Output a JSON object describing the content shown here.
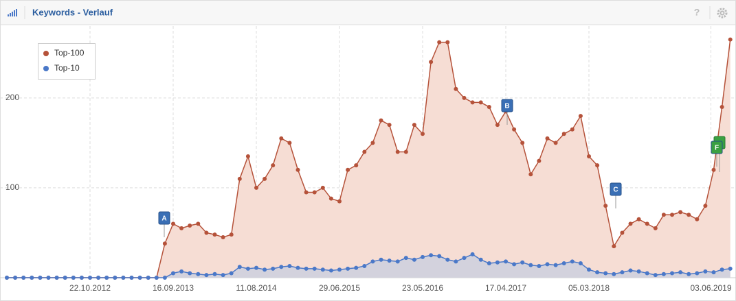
{
  "header": {
    "title": "Keywords - Verlauf",
    "help": "?"
  },
  "chart_data": {
    "type": "line",
    "categories": [
      null,
      null,
      null,
      null,
      null,
      null,
      null,
      null,
      null,
      null,
      "22.10.2012",
      null,
      null,
      null,
      null,
      null,
      null,
      null,
      null,
      null,
      "16.09.2013",
      null,
      null,
      null,
      null,
      null,
      null,
      null,
      null,
      null,
      "11.08.2014",
      null,
      null,
      null,
      null,
      null,
      null,
      null,
      null,
      null,
      "29.06.2015",
      null,
      null,
      null,
      null,
      null,
      null,
      null,
      null,
      null,
      "23.05.2016",
      null,
      null,
      null,
      null,
      null,
      null,
      null,
      null,
      null,
      "17.04.2017",
      null,
      null,
      null,
      null,
      null,
      null,
      null,
      null,
      null,
      "05.03.2018",
      null,
      null,
      null,
      null,
      null,
      null,
      null,
      null,
      null,
      null,
      null,
      null,
      null,
      null,
      "03.06.2019",
      null,
      null
    ],
    "series": [
      {
        "name": "Top-100",
        "color": "#b5523a",
        "fill": "#f6ddd4",
        "values": [
          0,
          0,
          0,
          0,
          0,
          0,
          0,
          0,
          0,
          0,
          0,
          0,
          0,
          0,
          0,
          0,
          0,
          0,
          0,
          38,
          60,
          55,
          58,
          60,
          50,
          48,
          45,
          48,
          110,
          135,
          100,
          110,
          125,
          155,
          150,
          120,
          95,
          95,
          100,
          88,
          85,
          120,
          125,
          140,
          150,
          175,
          170,
          140,
          140,
          170,
          160,
          240,
          262,
          262,
          210,
          200,
          195,
          195,
          190,
          170,
          185,
          165,
          150,
          115,
          130,
          155,
          150,
          160,
          165,
          180,
          135,
          125,
          80,
          35,
          50,
          60,
          65,
          60,
          55,
          70,
          70,
          73,
          70,
          65,
          80,
          120,
          190,
          265
        ]
      },
      {
        "name": "Top-10",
        "color": "#4a78c8",
        "fill": "#cfd0de",
        "values": [
          0,
          0,
          0,
          0,
          0,
          0,
          0,
          0,
          0,
          0,
          0,
          0,
          0,
          0,
          0,
          0,
          0,
          0,
          0,
          0,
          5,
          7,
          5,
          4,
          3,
          4,
          3,
          5,
          12,
          10,
          11,
          9,
          10,
          12,
          13,
          11,
          10,
          10,
          9,
          8,
          9,
          10,
          11,
          13,
          18,
          20,
          19,
          18,
          22,
          20,
          23,
          25,
          24,
          20,
          18,
          22,
          26,
          20,
          16,
          17,
          18,
          15,
          17,
          14,
          13,
          15,
          14,
          16,
          18,
          16,
          9,
          6,
          5,
          4,
          6,
          8,
          7,
          5,
          3,
          4,
          5,
          6,
          4,
          5,
          7,
          6,
          9,
          10
        ]
      }
    ],
    "ylim": [
      0,
      280
    ],
    "yticks": [
      100,
      200
    ],
    "grid": true,
    "legend": "top-left",
    "annotations": [
      {
        "label": "A",
        "color": "#3a6fb5"
      },
      {
        "label": "B",
        "color": "#3a6fb5"
      },
      {
        "label": "C",
        "color": "#3a6fb5"
      },
      {
        "label": "F",
        "color": "#3aa042"
      }
    ]
  }
}
